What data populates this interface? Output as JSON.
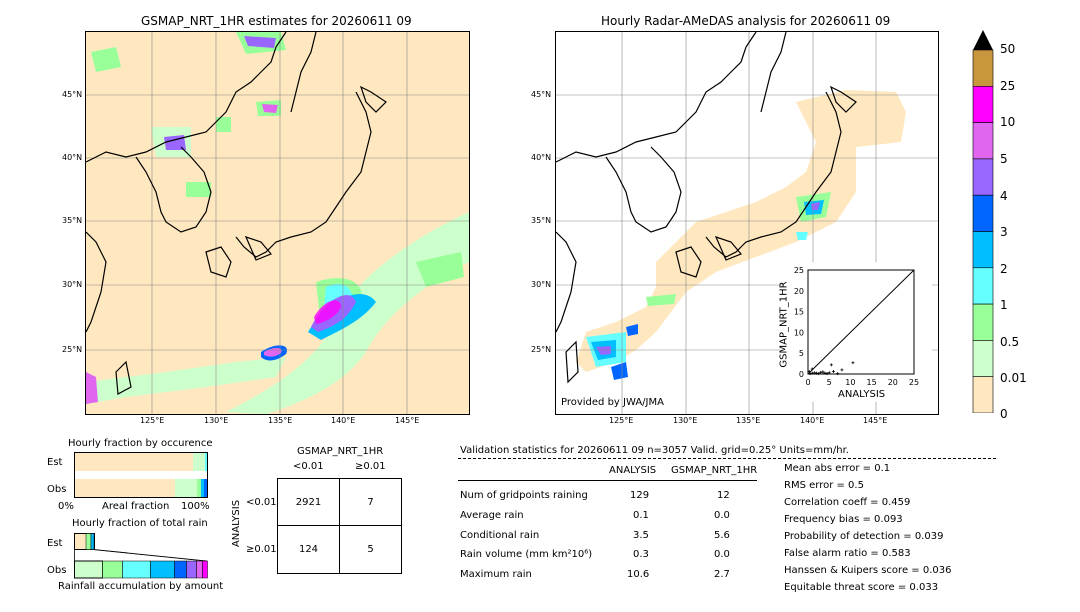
{
  "left_map": {
    "title": "GSMAP_NRT_1HR estimates for 20260611 09",
    "lat_labels": [
      "45°N",
      "40°N",
      "35°N",
      "30°N",
      "25°N"
    ],
    "lon_labels": [
      "125°E",
      "130°E",
      "135°E",
      "140°E",
      "145°E"
    ]
  },
  "right_map": {
    "title": "Hourly Radar-AMeDAS analysis for 20260611 09",
    "lat_labels": [
      "45°N",
      "40°N",
      "35°N",
      "30°N",
      "25°N"
    ],
    "lon_labels": [
      "125°E",
      "130°E",
      "135°E",
      "140°E",
      "145°E"
    ],
    "credit": "Provided by JWA/JMA"
  },
  "colorbar": {
    "labels": [
      "50",
      "25",
      "10",
      "5",
      "4",
      "3",
      "2",
      "1",
      "0.5",
      "0.01",
      "0"
    ],
    "colors": [
      "#c8963c",
      "#ff00ff",
      "#e066f0",
      "#9966ff",
      "#0066ff",
      "#00bfff",
      "#66ffff",
      "#99ff99",
      "#ccffcc",
      "#ffe8bf"
    ]
  },
  "scatter": {
    "xlabel": "ANALYSIS",
    "ylabel": "GSMAP_NRT_1HR",
    "ticks": [
      "0",
      "5",
      "10",
      "15",
      "20",
      "25"
    ]
  },
  "fraction_occurrence": {
    "title": "Hourly fraction by occurence",
    "row_labels": [
      "Est",
      "Obs"
    ],
    "axis_left": "0%",
    "axis_mid": "Areal fraction",
    "axis_right": "100%"
  },
  "fraction_total": {
    "title": "Hourly fraction of total rain",
    "row_labels": [
      "Est",
      "Obs"
    ],
    "axis_label": "Rainfall accumulation by amount"
  },
  "contingency": {
    "title": "GSMAP_NRT_1HR",
    "col_headers": [
      "<0.01",
      "≥0.01"
    ],
    "row_axis": "ANALYSIS",
    "row_headers": [
      "<0.01",
      "≥0.01"
    ],
    "cells": [
      [
        "2921",
        "7"
      ],
      [
        "124",
        "5"
      ]
    ]
  },
  "validation": {
    "header": "Validation statistics for 20260611 09  n=3057 Valid. grid=0.25° Units=mm/hr.",
    "col_headers": [
      "ANALYSIS",
      "GSMAP_NRT_1HR"
    ],
    "rows": [
      {
        "label": "Num of gridpoints raining",
        "analysis": "129",
        "gsmap": "12"
      },
      {
        "label": "Average rain",
        "analysis": "0.1",
        "gsmap": "0.0"
      },
      {
        "label": "Conditional rain",
        "analysis": "3.5",
        "gsmap": "5.6"
      },
      {
        "label": "Rain volume (mm km²10⁶)",
        "analysis": "0.3",
        "gsmap": "0.0"
      },
      {
        "label": "Maximum rain",
        "analysis": "10.6",
        "gsmap": "2.7"
      }
    ],
    "scores": [
      "Mean abs error =    0.1",
      "RMS error =    0.5",
      "Correlation coeff =  0.459",
      "Frequency bias =  0.093",
      "Probability of detection =  0.039",
      "False alarm ratio =  0.583",
      "Hanssen & Kuipers score =  0.036",
      "Equitable threat score =  0.033"
    ]
  },
  "chart_data": [
    {
      "type": "heatmap",
      "title": "GSMAP_NRT_1HR estimates for 20260611 09",
      "x_ticks": [
        "125°E",
        "130°E",
        "135°E",
        "140°E",
        "145°E"
      ],
      "y_ticks": [
        "45°N",
        "40°N",
        "35°N",
        "30°N",
        "25°N"
      ]
    },
    {
      "type": "heatmap",
      "title": "Hourly Radar-AMeDAS analysis for 20260611 09",
      "x_ticks": [
        "125°E",
        "130°E",
        "135°E",
        "140°E",
        "145°E"
      ],
      "y_ticks": [
        "45°N",
        "40°N",
        "35°N",
        "30°N",
        "25°N"
      ]
    },
    {
      "type": "scatter",
      "xlabel": "ANALYSIS",
      "ylabel": "GSMAP_NRT_1HR",
      "xlim": [
        0,
        25
      ],
      "ylim": [
        0,
        25
      ],
      "points": [
        [
          0.5,
          0.1
        ],
        [
          1,
          0.2
        ],
        [
          1.5,
          0.3
        ],
        [
          2,
          0.2
        ],
        [
          2.5,
          0.1
        ],
        [
          3,
          0.4
        ],
        [
          3.5,
          0.5
        ],
        [
          4,
          0.2
        ],
        [
          4.5,
          0.1
        ],
        [
          5,
          0.3
        ],
        [
          6,
          0.6
        ],
        [
          7,
          0.1
        ],
        [
          8,
          1
        ],
        [
          10.6,
          2.7
        ],
        [
          5.5,
          2.2
        ],
        [
          1,
          1.2
        ],
        [
          0.3,
          0.6
        ]
      ]
    },
    {
      "type": "table",
      "title": "GSMAP_NRT_1HR",
      "rows": [
        [
          "2921",
          "7"
        ],
        [
          "124",
          "5"
        ]
      ]
    }
  ]
}
